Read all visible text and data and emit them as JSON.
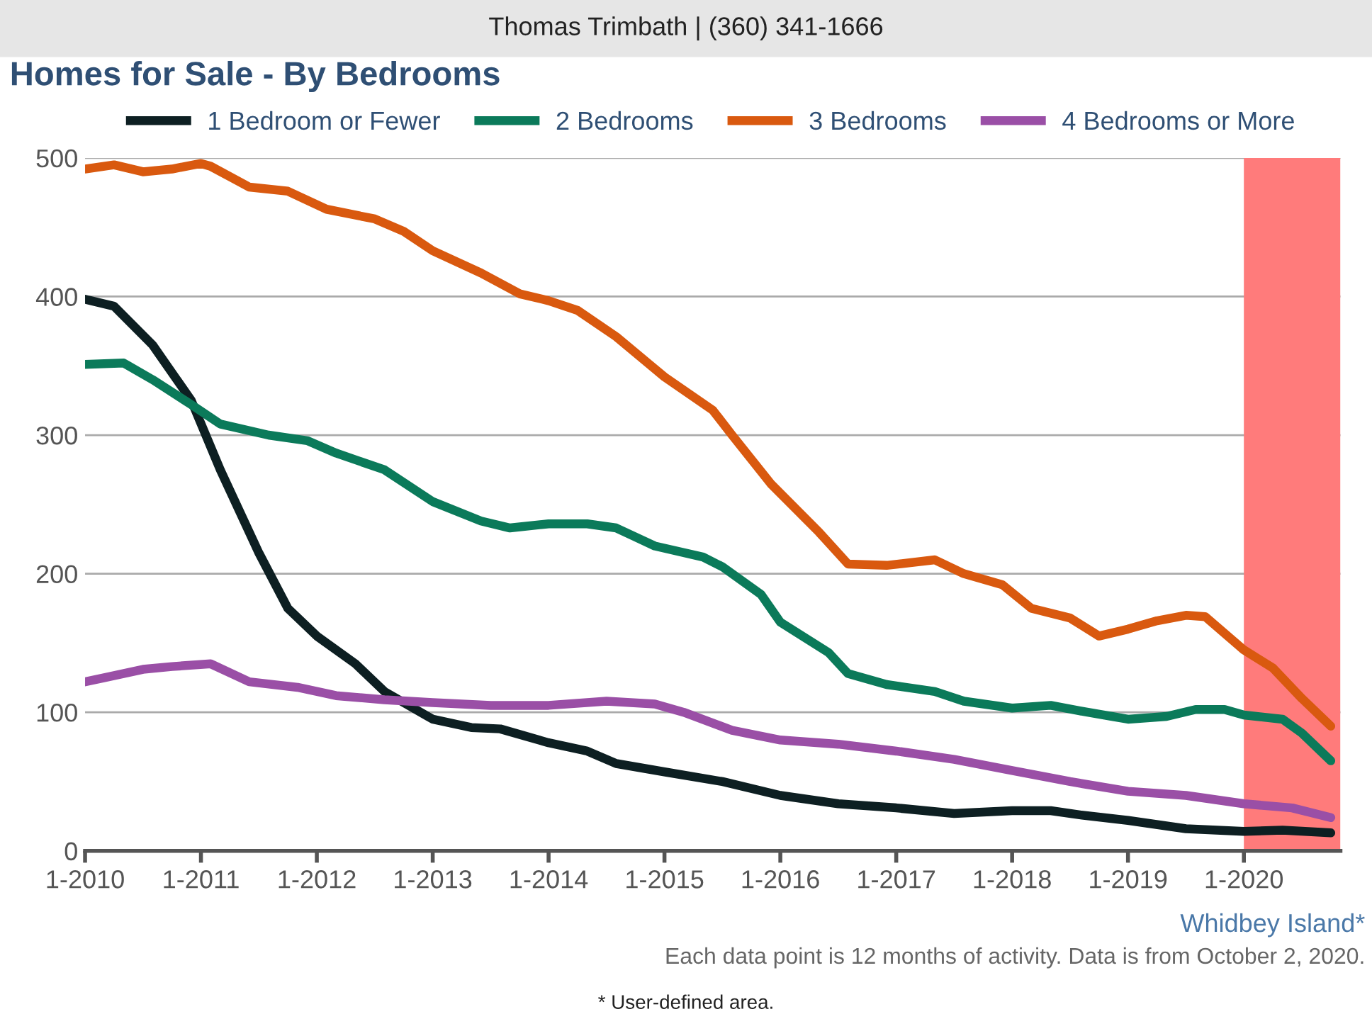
{
  "chart_data": {
    "type": "line",
    "title": "Homes for Sale - By Bedrooms",
    "legend": "top",
    "grid": "y",
    "marker": "none",
    "line_style": "solid",
    "annotations": [
      "Thomas Trimbath | (360) 341-1666",
      "Whidbey Island*",
      "Each data point is 12 months of activity. Data is from October 2, 2020.",
      "* User-defined area."
    ],
    "xlim": [
      "2010-01",
      "2020-11"
    ],
    "xticks": [
      {
        "value": "2010-01",
        "label": "1-2010"
      },
      {
        "value": "2011-01",
        "label": "1-2011"
      },
      {
        "value": "2012-01",
        "label": "1-2012"
      },
      {
        "value": "2013-01",
        "label": "1-2013"
      },
      {
        "value": "2014-01",
        "label": "1-2014"
      },
      {
        "value": "2015-01",
        "label": "1-2015"
      },
      {
        "value": "2016-01",
        "label": "1-2016"
      },
      {
        "value": "2017-01",
        "label": "1-2017"
      },
      {
        "value": "2018-01",
        "label": "1-2018"
      },
      {
        "value": "2019-01",
        "label": "1-2019"
      },
      {
        "value": "2020-01",
        "label": "1-2020"
      }
    ],
    "ylim": [
      0,
      500
    ],
    "yticks": [
      0,
      100,
      200,
      300,
      400,
      500
    ],
    "bands": [
      {
        "axis": "x",
        "from": "2020-01",
        "to": "2020-11",
        "color": "#ff7b7b"
      }
    ],
    "series": [
      {
        "name": "1 Bedroom or Fewer",
        "color": "#0d1f22",
        "x": [
          "2010-01",
          "2010-04",
          "2010-08",
          "2010-12",
          "2011-03",
          "2011-07",
          "2011-10",
          "2012-01",
          "2012-05",
          "2012-08",
          "2013-01",
          "2013-05",
          "2013-08",
          "2014-01",
          "2014-05",
          "2014-08",
          "2015-01",
          "2015-07",
          "2016-01",
          "2016-07",
          "2017-01",
          "2017-07",
          "2018-01",
          "2018-05",
          "2018-08",
          "2019-01",
          "2019-07",
          "2020-01",
          "2020-05",
          "2020-10"
        ],
        "values": [
          398,
          393,
          365,
          325,
          275,
          215,
          175,
          155,
          135,
          115,
          95,
          89,
          88,
          78,
          72,
          63,
          57,
          50,
          40,
          34,
          31,
          27,
          29,
          29,
          26,
          22,
          16,
          14,
          15,
          13
        ]
      },
      {
        "name": "2 Bedrooms",
        "color": "#0b7a5a",
        "x": [
          "2010-01",
          "2010-05",
          "2010-08",
          "2010-12",
          "2011-03",
          "2011-08",
          "2011-12",
          "2012-03",
          "2012-08",
          "2013-01",
          "2013-06",
          "2013-09",
          "2014-01",
          "2014-05",
          "2014-08",
          "2014-12",
          "2015-05",
          "2015-07",
          "2015-11",
          "2016-01",
          "2016-06",
          "2016-08",
          "2016-12",
          "2017-05",
          "2017-08",
          "2018-01",
          "2018-05",
          "2018-08",
          "2019-01",
          "2019-05",
          "2019-08",
          "2019-11",
          "2020-01",
          "2020-05",
          "2020-07",
          "2020-10"
        ],
        "values": [
          351,
          352,
          340,
          322,
          308,
          300,
          296,
          287,
          275,
          252,
          238,
          233,
          236,
          236,
          233,
          220,
          212,
          205,
          185,
          165,
          143,
          128,
          120,
          115,
          108,
          103,
          105,
          101,
          95,
          97,
          102,
          102,
          98,
          95,
          85,
          65
        ]
      },
      {
        "name": "3 Bedrooms",
        "color": "#d9590f",
        "x": [
          "2010-01",
          "2010-04",
          "2010-07",
          "2010-10",
          "2011-01",
          "2011-02",
          "2011-06",
          "2011-10",
          "2012-02",
          "2012-07",
          "2012-10",
          "2013-01",
          "2013-06",
          "2013-10",
          "2014-01",
          "2014-04",
          "2014-08",
          "2015-01",
          "2015-06",
          "2015-08",
          "2015-12",
          "2016-05",
          "2016-08",
          "2016-12",
          "2017-05",
          "2017-08",
          "2017-12",
          "2018-03",
          "2018-07",
          "2018-10",
          "2019-01",
          "2019-04",
          "2019-07",
          "2019-09",
          "2020-01",
          "2020-04",
          "2020-07",
          "2020-10"
        ],
        "values": [
          492,
          495,
          490,
          492,
          496,
          494,
          479,
          476,
          463,
          456,
          447,
          433,
          417,
          402,
          397,
          390,
          371,
          342,
          318,
          300,
          265,
          230,
          207,
          206,
          210,
          200,
          192,
          175,
          168,
          155,
          160,
          166,
          170,
          169,
          145,
          132,
          110,
          90
        ]
      },
      {
        "name": "4 Bedrooms or More",
        "color": "#9a4fa6",
        "x": [
          "2010-01",
          "2010-03",
          "2010-07",
          "2010-10",
          "2011-02",
          "2011-06",
          "2011-11",
          "2012-03",
          "2012-08",
          "2013-01",
          "2013-07",
          "2014-01",
          "2014-07",
          "2014-12",
          "2015-03",
          "2015-08",
          "2016-01",
          "2016-07",
          "2017-01",
          "2017-07",
          "2018-01",
          "2018-07",
          "2019-01",
          "2019-07",
          "2020-01",
          "2020-06",
          "2020-10"
        ],
        "values": [
          122,
          125,
          131,
          133,
          135,
          122,
          118,
          112,
          109,
          107,
          105,
          105,
          108,
          106,
          100,
          87,
          80,
          77,
          72,
          66,
          58,
          50,
          43,
          40,
          34,
          31,
          24
        ]
      }
    ]
  }
}
